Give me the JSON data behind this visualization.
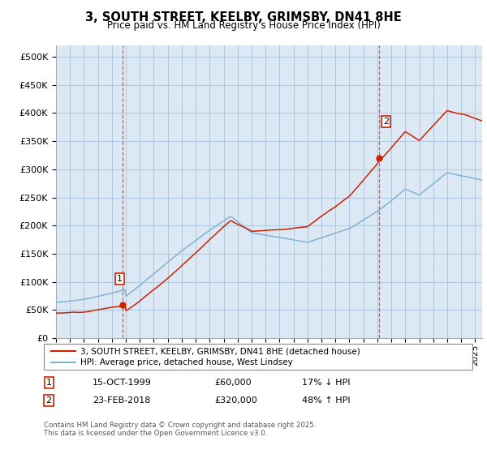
{
  "title": "3, SOUTH STREET, KEELBY, GRIMSBY, DN41 8HE",
  "subtitle": "Price paid vs. HM Land Registry's House Price Index (HPI)",
  "ylabel_ticks": [
    "£0",
    "£50K",
    "£100K",
    "£150K",
    "£200K",
    "£250K",
    "£300K",
    "£350K",
    "£400K",
    "£450K",
    "£500K"
  ],
  "ytick_vals": [
    0,
    50000,
    100000,
    150000,
    200000,
    250000,
    300000,
    350000,
    400000,
    450000,
    500000
  ],
  "ylim": [
    0,
    520000
  ],
  "xlim_start": 1995.0,
  "xlim_end": 2025.5,
  "sale1_x": 1999.79,
  "sale1_y": 60000,
  "sale1_label": "1",
  "sale2_x": 2018.12,
  "sale2_y": 320000,
  "sale2_label": "2",
  "hpi_color": "#7fb3d3",
  "price_color": "#cc2200",
  "vline_color": "#dd4444",
  "legend_line1": "3, SOUTH STREET, KEELBY, GRIMSBY, DN41 8HE (detached house)",
  "legend_line2": "HPI: Average price, detached house, West Lindsey",
  "table_row1": [
    "1",
    "15-OCT-1999",
    "£60,000",
    "17% ↓ HPI"
  ],
  "table_row2": [
    "2",
    "23-FEB-2018",
    "£320,000",
    "48% ↑ HPI"
  ],
  "footnote": "Contains HM Land Registry data © Crown copyright and database right 2025.\nThis data is licensed under the Open Government Licence v3.0.",
  "bg_color": "#ffffff",
  "plot_bg_color": "#dce9f5",
  "grid_color": "#b0c8e0"
}
